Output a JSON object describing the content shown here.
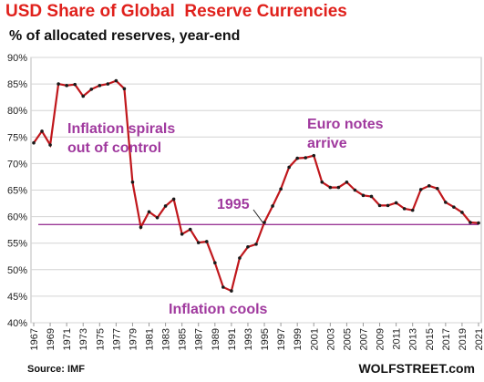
{
  "header": {
    "title": "USD Share of Global  Reserve Currencies",
    "subtitle": "% of allocated reserves, year-end"
  },
  "footer": {
    "source": "Source: IMF",
    "brand": "WOLFSTREET.com"
  },
  "colors": {
    "title": "#e0211c",
    "line": "#c0171c",
    "reference_line": "#9b3a96",
    "annotation": "#a0399e"
  },
  "chart_data": {
    "type": "line",
    "x": [
      1967,
      1968,
      1969,
      1970,
      1971,
      1972,
      1973,
      1974,
      1975,
      1976,
      1977,
      1978,
      1979,
      1980,
      1981,
      1982,
      1983,
      1984,
      1985,
      1986,
      1987,
      1988,
      1989,
      1990,
      1991,
      1992,
      1993,
      1994,
      1995,
      1996,
      1997,
      1998,
      1999,
      2000,
      2001,
      2002,
      2003,
      2004,
      2005,
      2006,
      2007,
      2008,
      2009,
      2010,
      2011,
      2012,
      2013,
      2014,
      2015,
      2016,
      2017,
      2018,
      2019,
      2020,
      2021
    ],
    "series": [
      {
        "values": [
          73.9,
          76.1,
          73.5,
          85.0,
          84.7,
          84.9,
          82.7,
          84.0,
          84.7,
          85.0,
          85.6,
          84.1,
          66.5,
          58.0,
          60.9,
          59.8,
          62.0,
          63.3,
          56.7,
          57.6,
          55.1,
          55.3,
          51.3,
          46.7,
          46.0,
          52.2,
          54.3,
          54.8,
          58.9,
          62.0,
          65.2,
          69.3,
          71.0,
          71.1,
          71.5,
          66.5,
          65.5,
          65.5,
          66.5,
          65.0,
          64.0,
          63.8,
          62.1,
          62.1,
          62.6,
          61.5,
          61.2,
          65.1,
          65.8,
          65.3,
          62.7,
          61.8,
          60.8,
          58.9,
          58.8
        ]
      }
    ],
    "reference_line": 58.5,
    "ylim": [
      40,
      90
    ],
    "y_ticks": [
      "40%",
      "45%",
      "50%",
      "55%",
      "60%",
      "65%",
      "70%",
      "75%",
      "80%",
      "85%",
      "90%"
    ],
    "x_ticks": [
      "1967",
      "1969",
      "1971",
      "1973",
      "1975",
      "1977",
      "1979",
      "1981",
      "1983",
      "1985",
      "1987",
      "1989",
      "1991",
      "1993",
      "1995",
      "1997",
      "1999",
      "2001",
      "2003",
      "2005",
      "2007",
      "2009",
      "2011",
      "2013",
      "2015",
      "2017",
      "2019",
      "2021"
    ],
    "annotations": {
      "inflation_spirals_1": "Inflation spirals",
      "inflation_spirals_2": "out of control",
      "euro_notes_1": "Euro notes",
      "euro_notes_2": "arrive",
      "year_1995": "1995",
      "inflation_cools": "Inflation cools"
    }
  }
}
